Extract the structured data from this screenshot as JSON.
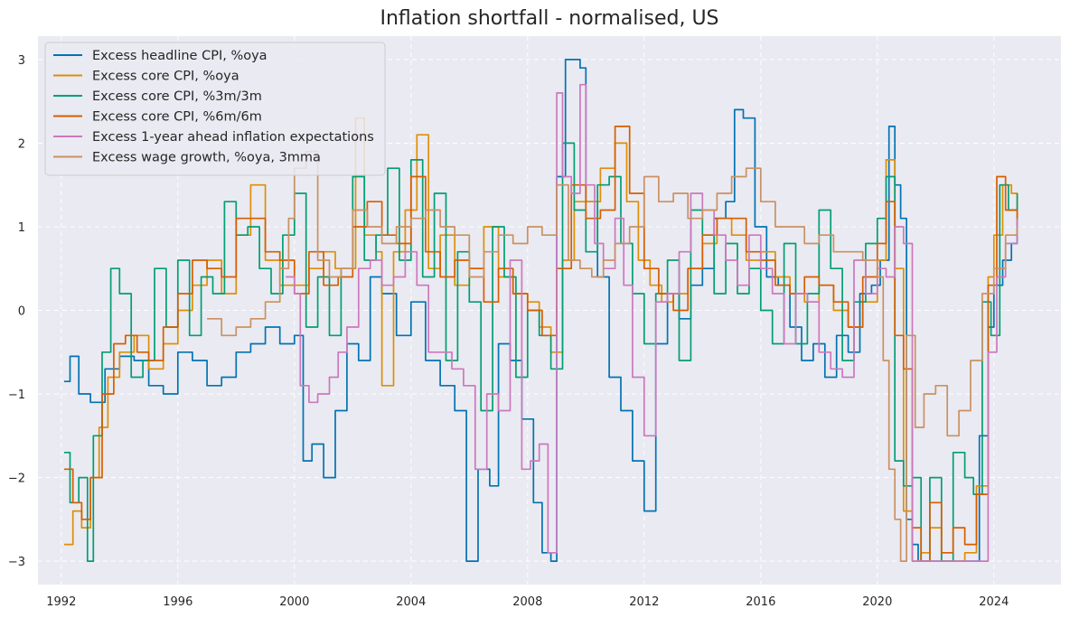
{
  "chart_data": {
    "type": "line",
    "title": "Inflation shortfall - normalised, US",
    "xlabel": "",
    "ylabel": "",
    "xlim": [
      1991.2,
      2026.3
    ],
    "ylim": [
      -3.28,
      3.28
    ],
    "grid": true,
    "legend_position": "top-left",
    "x_ticks": [
      1992,
      1996,
      2000,
      2004,
      2008,
      2012,
      2016,
      2020,
      2024
    ],
    "x_tick_labels": [
      "1992",
      "1996",
      "2000",
      "2004",
      "2008",
      "2012",
      "2016",
      "2020",
      "2024"
    ],
    "y_ticks": [
      -3,
      -2,
      -1,
      0,
      1,
      2,
      3
    ],
    "y_tick_labels": [
      "−3",
      "−2",
      "−1",
      "0",
      "1",
      "2",
      "3"
    ],
    "series": [
      {
        "name": "Excess headline CPI, %oya",
        "color": "#0173b2",
        "x": [
          1992.1,
          1992.3,
          1992.6,
          1993.0,
          1993.5,
          1994.0,
          1994.5,
          1995.0,
          1995.5,
          1996.0,
          1996.5,
          1997.0,
          1997.5,
          1998.0,
          1998.5,
          1999.0,
          1999.5,
          2000.0,
          2000.3,
          2000.6,
          2001.0,
          2001.4,
          2001.8,
          2002.2,
          2002.6,
          2003.0,
          2003.5,
          2004.0,
          2004.5,
          2005.0,
          2005.5,
          2005.9,
          2006.3,
          2006.7,
          2007.0,
          2007.4,
          2007.8,
          2008.2,
          2008.5,
          2008.8,
          2009.0,
          2009.3,
          2009.6,
          2009.8,
          2010.0,
          2010.4,
          2010.8,
          2011.2,
          2011.6,
          2012.0,
          2012.4,
          2012.8,
          2013.2,
          2013.6,
          2014.0,
          2014.4,
          2014.8,
          2015.1,
          2015.4,
          2015.8,
          2016.2,
          2016.6,
          2017.0,
          2017.4,
          2017.8,
          2018.2,
          2018.6,
          2019.0,
          2019.4,
          2019.8,
          2020.1,
          2020.4,
          2020.6,
          2020.8,
          2021.0,
          2021.2,
          2021.4,
          2021.6,
          2022.0,
          2022.4,
          2022.8,
          2023.2,
          2023.5,
          2023.8,
          2024.0,
          2024.3,
          2024.6,
          2024.8
        ],
        "values": [
          -0.85,
          -0.55,
          -1.0,
          -1.1,
          -0.7,
          -0.55,
          -0.6,
          -0.9,
          -1.0,
          -0.5,
          -0.6,
          -0.9,
          -0.8,
          -0.5,
          -0.4,
          -0.2,
          -0.4,
          -0.3,
          -1.8,
          -1.6,
          -2.0,
          -1.2,
          -0.4,
          -0.6,
          0.4,
          0.2,
          -0.3,
          0.1,
          -0.6,
          -0.9,
          -1.2,
          -3.0,
          -1.9,
          -2.1,
          -0.4,
          -0.6,
          -1.3,
          -2.3,
          -2.9,
          -3.0,
          1.6,
          3.0,
          3.0,
          2.9,
          1.3,
          0.4,
          -0.8,
          -1.2,
          -1.8,
          -2.4,
          -0.4,
          0.2,
          -0.1,
          0.3,
          0.5,
          1.1,
          1.3,
          2.4,
          2.3,
          1.0,
          0.4,
          0.3,
          -0.2,
          -0.6,
          -0.4,
          -0.8,
          -0.3,
          -0.5,
          0.2,
          0.3,
          0.6,
          2.2,
          1.5,
          1.1,
          -2.5,
          -2.8,
          -3.0,
          -3.0,
          -3.0,
          -3.0,
          -3.0,
          -3.0,
          -1.5,
          -0.2,
          0.3,
          0.6,
          0.8,
          1.1
        ]
      },
      {
        "name": "Excess core CPI, %oya",
        "color": "#de8f05",
        "x": [
          1992.1,
          1992.4,
          1992.7,
          1993.0,
          1993.3,
          1993.6,
          1994.0,
          1994.5,
          1995.0,
          1995.5,
          1996.0,
          1996.5,
          1997.0,
          1997.5,
          1998.0,
          1998.5,
          1999.0,
          1999.5,
          2000.0,
          2000.5,
          2001.0,
          2001.4,
          2001.8,
          2002.1,
          2002.4,
          2002.8,
          2003.0,
          2003.4,
          2003.8,
          2004.2,
          2004.6,
          2005.0,
          2005.5,
          2006.0,
          2006.5,
          2007.0,
          2007.5,
          2008.0,
          2008.4,
          2008.8,
          2009.2,
          2009.6,
          2010.0,
          2010.5,
          2011.0,
          2011.4,
          2011.8,
          2012.2,
          2012.6,
          2013.0,
          2013.5,
          2014.0,
          2014.5,
          2015.0,
          2015.5,
          2016.0,
          2016.5,
          2017.0,
          2017.5,
          2018.0,
          2018.5,
          2019.0,
          2019.5,
          2020.0,
          2020.3,
          2020.6,
          2020.9,
          2021.2,
          2021.5,
          2021.8,
          2022.2,
          2022.6,
          2023.0,
          2023.4,
          2023.8,
          2024.0,
          2024.3,
          2024.6,
          2024.8
        ],
        "values": [
          -2.8,
          -2.4,
          -2.6,
          -2.0,
          -1.4,
          -0.8,
          -0.5,
          -0.3,
          -0.7,
          -0.4,
          0.0,
          0.3,
          0.6,
          0.2,
          0.9,
          1.5,
          0.6,
          0.3,
          0.3,
          0.5,
          0.7,
          0.5,
          0.5,
          2.3,
          0.9,
          0.7,
          -0.9,
          0.7,
          1.2,
          2.1,
          0.5,
          0.9,
          0.3,
          0.5,
          1.0,
          0.4,
          0.2,
          0.1,
          -0.2,
          -0.5,
          0.6,
          1.3,
          1.3,
          1.7,
          2.0,
          1.3,
          0.6,
          0.3,
          0.1,
          0.2,
          0.5,
          0.8,
          1.1,
          0.9,
          0.6,
          0.7,
          0.4,
          0.2,
          0.1,
          0.3,
          0.0,
          -0.2,
          0.1,
          0.6,
          1.8,
          0.5,
          -2.4,
          -3.0,
          -2.9,
          -2.6,
          -3.0,
          -3.0,
          -2.9,
          -2.1,
          0.4,
          0.9,
          1.5,
          1.4,
          1.1
        ]
      },
      {
        "name": "Excess core CPI, %3m/3m",
        "color": "#029e73",
        "x": [
          1992.1,
          1992.3,
          1992.6,
          1992.9,
          1993.1,
          1993.4,
          1993.7,
          1994.0,
          1994.4,
          1994.8,
          1995.2,
          1995.6,
          1996.0,
          1996.4,
          1996.8,
          1997.2,
          1997.6,
          1998.0,
          1998.4,
          1998.8,
          1999.2,
          1999.6,
          2000.0,
          2000.4,
          2000.8,
          2001.2,
          2001.6,
          2002.0,
          2002.4,
          2002.8,
          2003.2,
          2003.6,
          2004.0,
          2004.4,
          2004.8,
          2005.2,
          2005.6,
          2006.0,
          2006.4,
          2006.8,
          2007.2,
          2007.6,
          2008.0,
          2008.4,
          2008.8,
          2009.2,
          2009.6,
          2010.0,
          2010.4,
          2010.8,
          2011.2,
          2011.6,
          2012.0,
          2012.4,
          2012.8,
          2013.2,
          2013.6,
          2014.0,
          2014.4,
          2014.8,
          2015.2,
          2015.6,
          2016.0,
          2016.4,
          2016.8,
          2017.2,
          2017.6,
          2018.0,
          2018.4,
          2018.8,
          2019.2,
          2019.6,
          2020.0,
          2020.3,
          2020.6,
          2020.9,
          2021.2,
          2021.5,
          2021.8,
          2022.2,
          2022.6,
          2023.0,
          2023.3,
          2023.6,
          2023.9,
          2024.2,
          2024.5,
          2024.8
        ],
        "values": [
          -1.7,
          -2.3,
          -2.0,
          -3.0,
          -1.5,
          -0.5,
          0.5,
          0.2,
          -0.8,
          -0.6,
          0.5,
          -0.2,
          0.6,
          -0.3,
          0.4,
          0.2,
          1.3,
          0.9,
          1.0,
          0.5,
          0.2,
          0.9,
          1.4,
          -0.2,
          0.4,
          -0.3,
          0.5,
          1.6,
          0.6,
          0.9,
          1.7,
          0.6,
          1.8,
          0.4,
          1.4,
          -0.6,
          0.7,
          0.1,
          -1.2,
          1.0,
          0.4,
          -0.8,
          0.0,
          -0.3,
          -0.7,
          2.0,
          1.2,
          0.7,
          1.5,
          1.6,
          0.8,
          0.2,
          -0.4,
          0.2,
          0.6,
          -0.6,
          1.2,
          0.9,
          0.2,
          0.8,
          0.2,
          0.5,
          0.0,
          -0.4,
          0.8,
          -0.4,
          0.2,
          1.2,
          0.5,
          -0.6,
          0.1,
          0.8,
          1.1,
          1.6,
          -1.8,
          -2.1,
          -2.0,
          -3.0,
          -2.0,
          -3.0,
          -1.7,
          -2.0,
          -2.2,
          0.1,
          -0.3,
          1.5,
          1.2,
          1.4
        ]
      },
      {
        "name": "Excess core CPI, %6m/6m",
        "color": "#d55e00",
        "x": [
          1992.1,
          1992.4,
          1992.7,
          1993.0,
          1993.4,
          1993.8,
          1994.2,
          1994.6,
          1995.0,
          1995.5,
          1996.0,
          1996.5,
          1997.0,
          1997.5,
          1998.0,
          1998.5,
          1999.0,
          1999.5,
          2000.0,
          2000.5,
          2001.0,
          2001.5,
          2002.0,
          2002.5,
          2003.0,
          2003.5,
          2004.0,
          2004.5,
          2005.0,
          2005.5,
          2006.0,
          2006.5,
          2007.0,
          2007.5,
          2008.0,
          2008.5,
          2009.0,
          2009.5,
          2010.0,
          2010.5,
          2011.0,
          2011.5,
          2012.0,
          2012.5,
          2013.0,
          2013.5,
          2014.0,
          2014.5,
          2015.0,
          2015.5,
          2016.0,
          2016.5,
          2017.0,
          2017.5,
          2018.0,
          2018.5,
          2019.0,
          2019.5,
          2020.0,
          2020.3,
          2020.6,
          2020.9,
          2021.2,
          2021.5,
          2021.8,
          2022.2,
          2022.6,
          2023.0,
          2023.4,
          2023.8,
          2024.1,
          2024.4,
          2024.8
        ],
        "values": [
          -1.9,
          -2.3,
          -2.5,
          -2.0,
          -1.0,
          -0.4,
          -0.3,
          -0.5,
          -0.6,
          -0.2,
          0.2,
          0.6,
          0.5,
          0.4,
          1.1,
          1.1,
          0.7,
          0.6,
          0.2,
          0.7,
          0.3,
          0.4,
          1.0,
          1.3,
          0.9,
          0.8,
          1.6,
          0.7,
          0.4,
          0.6,
          0.5,
          0.1,
          0.5,
          0.2,
          0.0,
          -0.3,
          0.5,
          1.5,
          1.1,
          1.2,
          2.2,
          1.4,
          0.5,
          0.2,
          0.0,
          0.5,
          0.9,
          1.1,
          1.1,
          0.7,
          0.6,
          0.3,
          0.2,
          0.4,
          0.3,
          0.1,
          -0.2,
          0.4,
          0.8,
          1.3,
          -0.3,
          -0.7,
          -2.6,
          -3.0,
          -2.3,
          -2.9,
          -2.6,
          -2.8,
          -2.2,
          0.3,
          1.6,
          1.2,
          0.9
        ]
      },
      {
        "name": "Excess 1-year ahead inflation expectations",
        "color": "#cc78bc",
        "x": [
          1999.7,
          2000.0,
          2000.2,
          2000.5,
          2000.8,
          2001.2,
          2001.5,
          2001.8,
          2002.2,
          2002.6,
          2003.0,
          2003.4,
          2003.8,
          2004.2,
          2004.6,
          2005.0,
          2005.4,
          2005.8,
          2006.2,
          2006.6,
          2007.0,
          2007.4,
          2007.8,
          2008.1,
          2008.4,
          2008.7,
          2009.0,
          2009.2,
          2009.5,
          2009.8,
          2010.0,
          2010.3,
          2010.6,
          2011.0,
          2011.3,
          2011.6,
          2012.0,
          2012.4,
          2012.8,
          2013.2,
          2013.6,
          2014.0,
          2014.4,
          2014.8,
          2015.2,
          2015.6,
          2016.0,
          2016.4,
          2016.8,
          2017.2,
          2017.6,
          2018.0,
          2018.4,
          2018.8,
          2019.2,
          2019.6,
          2020.0,
          2020.3,
          2020.6,
          2020.9,
          2021.2,
          2021.5,
          2021.8,
          2022.2,
          2022.6,
          2023.0,
          2023.4,
          2023.8,
          2024.1,
          2024.4,
          2024.8
        ],
        "values": [
          0.4,
          0.2,
          -0.9,
          -1.1,
          -1.0,
          -0.8,
          -0.5,
          -0.2,
          0.5,
          0.6,
          0.3,
          0.4,
          0.7,
          0.3,
          -0.5,
          -0.5,
          -0.7,
          -0.9,
          -1.9,
          -1.0,
          -1.2,
          0.6,
          -1.9,
          -1.8,
          -1.6,
          -2.9,
          2.6,
          1.6,
          1.4,
          2.7,
          1.5,
          0.8,
          0.5,
          1.1,
          0.3,
          -0.8,
          -1.5,
          0.1,
          0.2,
          0.7,
          1.4,
          1.2,
          0.9,
          0.6,
          0.3,
          0.9,
          0.5,
          0.2,
          -0.4,
          0.2,
          0.1,
          -0.5,
          -0.7,
          -0.8,
          0.6,
          0.2,
          0.5,
          0.4,
          1.0,
          0.8,
          -3.0,
          -3.0,
          -3.0,
          -3.0,
          -3.0,
          -3.0,
          -3.0,
          -0.5,
          0.4,
          0.8,
          1.1
        ]
      },
      {
        "name": "Excess wage growth, %oya, 3mma",
        "color": "#ca9161",
        "x": [
          1997.0,
          1997.5,
          1998.0,
          1998.5,
          1999.0,
          1999.5,
          1999.8,
          2000.0,
          2000.4,
          2000.8,
          2001.2,
          2001.6,
          2002.0,
          2002.5,
          2003.0,
          2003.5,
          2004.0,
          2004.5,
          2005.0,
          2005.5,
          2006.0,
          2006.5,
          2007.0,
          2007.5,
          2008.0,
          2008.5,
          2009.0,
          2009.4,
          2009.8,
          2010.2,
          2010.6,
          2011.0,
          2011.5,
          2012.0,
          2012.5,
          2013.0,
          2013.5,
          2014.0,
          2014.5,
          2015.0,
          2015.5,
          2016.0,
          2016.5,
          2017.0,
          2017.5,
          2018.0,
          2018.5,
          2019.0,
          2019.5,
          2020.0,
          2020.2,
          2020.4,
          2020.6,
          2020.8,
          2021.0,
          2021.3,
          2021.6,
          2022.0,
          2022.4,
          2022.8,
          2023.2,
          2023.6,
          2024.0,
          2024.4,
          2024.8
        ],
        "values": [
          -0.1,
          -0.3,
          -0.2,
          -0.1,
          0.1,
          0.5,
          1.1,
          1.7,
          1.9,
          0.6,
          0.4,
          0.5,
          1.2,
          1.0,
          0.8,
          1.0,
          1.1,
          1.2,
          1.0,
          0.9,
          0.4,
          0.7,
          0.9,
          0.8,
          1.0,
          0.9,
          1.5,
          0.6,
          0.5,
          0.4,
          0.6,
          0.8,
          1.0,
          1.6,
          1.3,
          1.4,
          1.1,
          1.2,
          1.4,
          1.6,
          1.7,
          1.3,
          1.0,
          1.0,
          0.8,
          0.9,
          0.7,
          0.7,
          0.6,
          0.4,
          -0.6,
          -1.9,
          -2.5,
          -3.0,
          -0.3,
          -1.4,
          -1.0,
          -0.9,
          -1.5,
          -1.2,
          -0.6,
          0.2,
          0.5,
          0.9,
          1.0
        ]
      }
    ]
  }
}
